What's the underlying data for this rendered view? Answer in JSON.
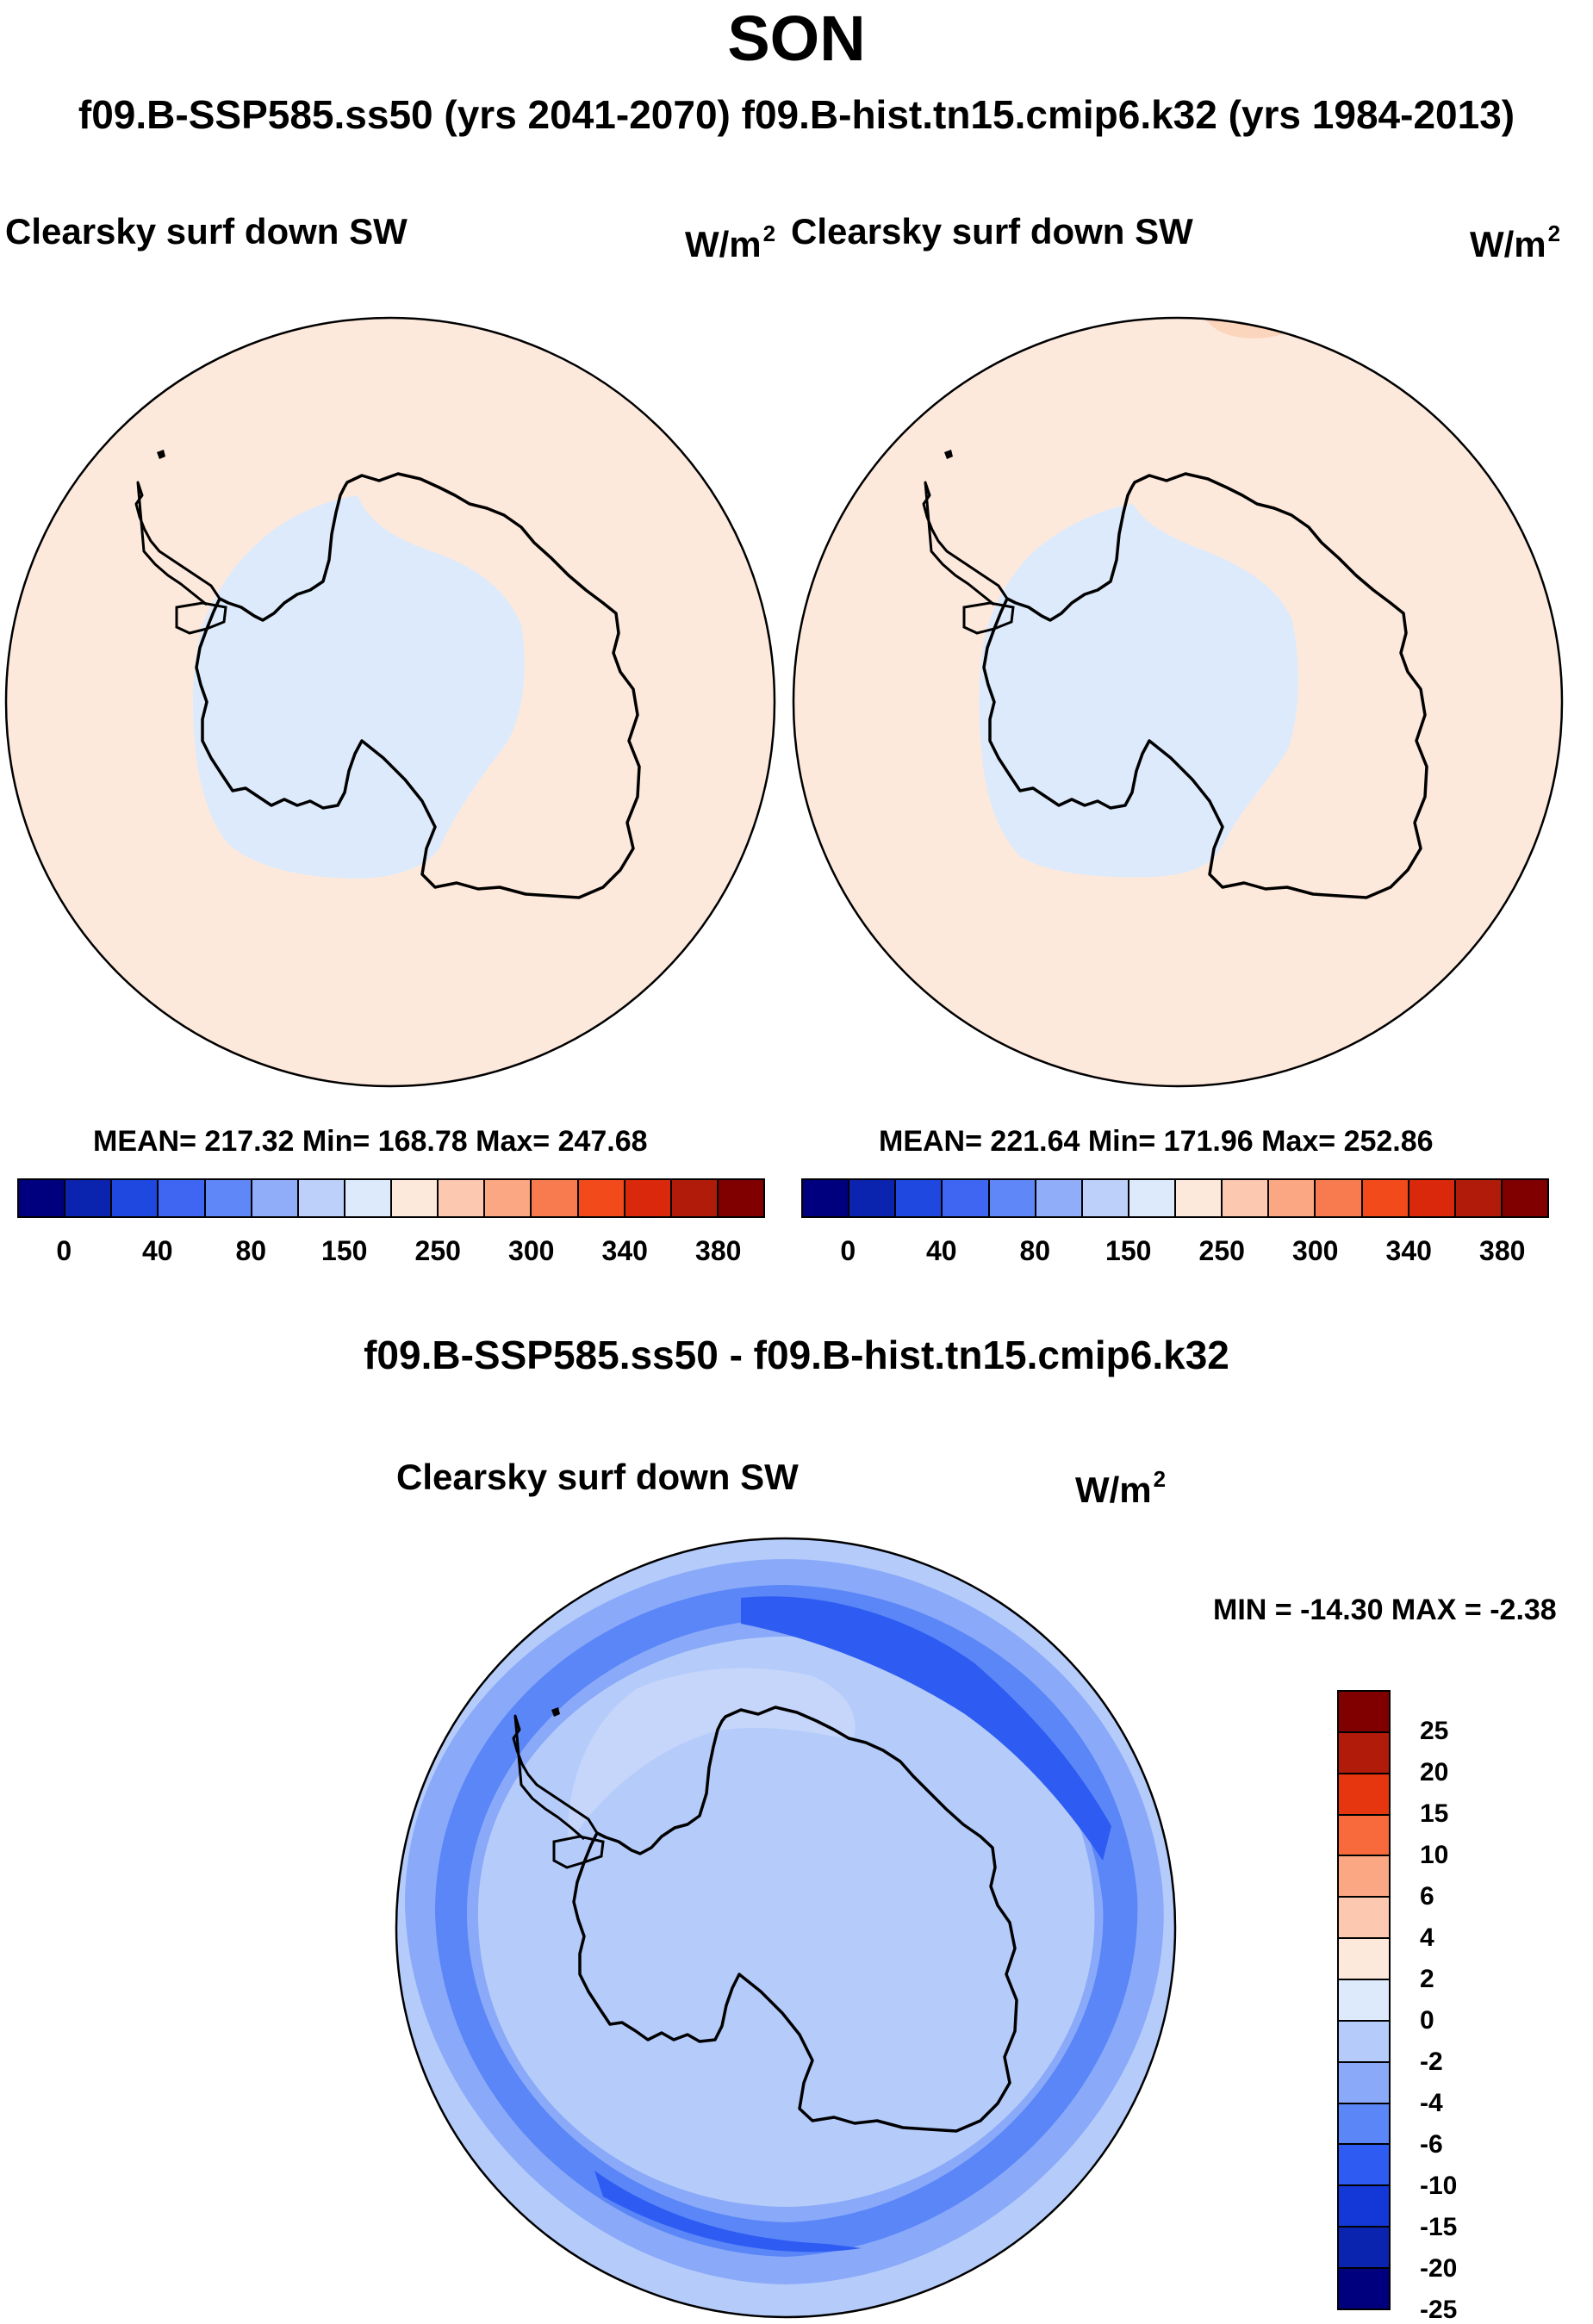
{
  "title": "SON",
  "subtitle": "f09.B-SSP585.ss50 (yrs 2041-2070)  f09.B-hist.tn15.cmip6.k32 (yrs 1984-2013)",
  "panels": [
    {
      "label": "Clearsky surf down SW",
      "units": "W/m",
      "units_sup": "2",
      "stats": "MEAN= 217.32  Min= 168.78  Max= 247.68"
    },
    {
      "label": "Clearsky surf down SW",
      "units": "W/m",
      "units_sup": "2",
      "stats": "MEAN= 221.64  Min= 171.96  Max= 252.86"
    }
  ],
  "colorbar_top": {
    "colors": [
      "#00007f",
      "#0a24b0",
      "#1f48e0",
      "#3e66f2",
      "#5f87f8",
      "#8fadf8",
      "#bcd0f9",
      "#dceafb",
      "#fde9dc",
      "#fcc9b0",
      "#fba783",
      "#f87b50",
      "#f34a1c",
      "#d9280b",
      "#b11c0a",
      "#800000"
    ],
    "tick_labels": [
      "0",
      "40",
      "80",
      "150",
      "250",
      "300",
      "340",
      "380"
    ]
  },
  "difference": {
    "title": "f09.B-SSP585.ss50 - f09.B-hist.tn15.cmip6.k32",
    "label": "Clearsky surf down SW",
    "units": "W/m",
    "units_sup": "2",
    "minmax": "MIN = -14.30 MAX =  -2.38"
  },
  "colorbar_diff": {
    "colors": [
      "#800000",
      "#b11c0a",
      "#e6360f",
      "#f86a3c",
      "#fba783",
      "#fcc9b0",
      "#fde9dc",
      "#dceafb",
      "#b5ccfb",
      "#8aaaf9",
      "#5a86f7",
      "#2e5cf2",
      "#1438d8",
      "#0a24b0",
      "#00007f"
    ],
    "tick_labels": [
      "25",
      "20",
      "15",
      "10",
      "6",
      "4",
      "2",
      "0",
      "-2",
      "-4",
      "-6",
      "-10",
      "-15",
      "-20",
      "-25"
    ]
  },
  "map_colors": {
    "peach": "#fde9dc",
    "peach_dark": "#fcd5bd",
    "light_blue": "#dceafb",
    "diff_base": "#b5ccfb",
    "diff_light": "#c6d6fa",
    "diff_mid": "#8aaaf9",
    "diff_dark": "#5a86f7",
    "diff_darker": "#2e5cf2",
    "coast": "#000000"
  }
}
